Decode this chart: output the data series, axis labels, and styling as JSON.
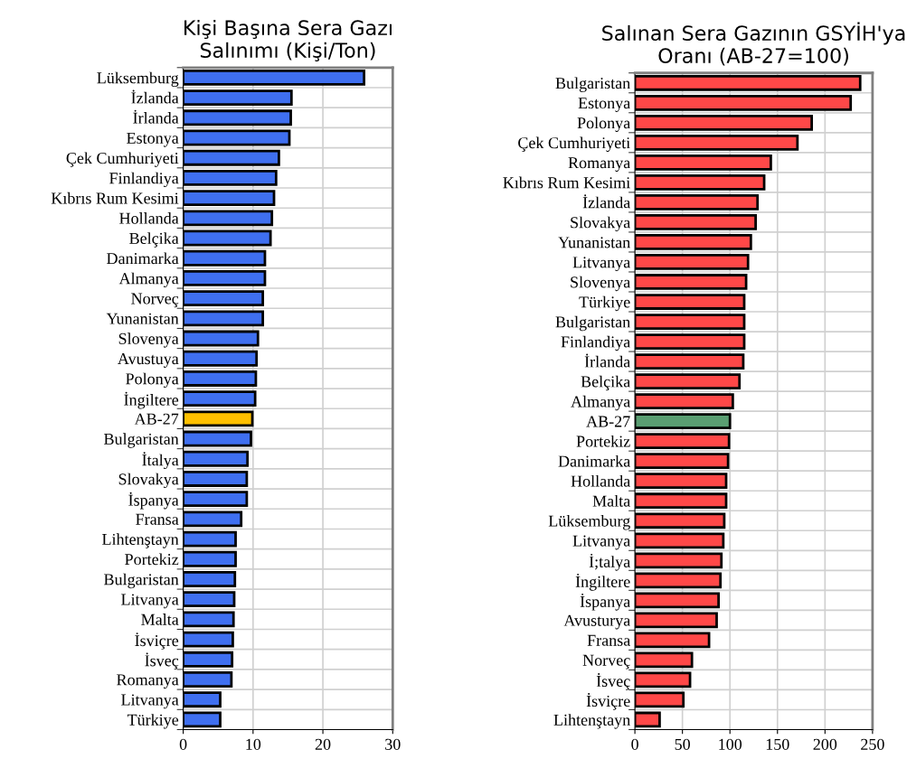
{
  "chart_data": [
    {
      "type": "bar",
      "orientation": "horizontal",
      "title": "Kişi Başına Sera Gazı\nSalınımı (Kişi/Ton)",
      "categories": [
        "Lüksemburg",
        "İzlanda",
        "İrlanda",
        "Estonya",
        "Çek Cumhuriyeti",
        "Finlandiya",
        "Kıbrıs Rum Kesimi",
        "Hollanda",
        "Belçika",
        "Danimarka",
        "Almanya",
        "Norveç",
        "Yunanistan",
        "Slovenya",
        "Avustuya",
        "Polonya",
        "İngiltere",
        "AB-27",
        "Bulgaristan",
        "İtalya",
        "Slovakya",
        "İspanya",
        "Fransa",
        "Lihtenştayn",
        "Portekiz",
        "Bulgaristan",
        "Litvanya",
        "Malta",
        "İsviçre",
        "İsveç",
        "Romanya",
        "Litvanya",
        "Türkiye"
      ],
      "values": [
        25.9,
        15.5,
        15.4,
        15.2,
        13.7,
        13.3,
        13.0,
        12.7,
        12.5,
        11.7,
        11.7,
        11.4,
        11.4,
        10.7,
        10.5,
        10.4,
        10.3,
        9.9,
        9.7,
        9.2,
        9.1,
        9.1,
        8.3,
        7.5,
        7.5,
        7.4,
        7.3,
        7.2,
        7.1,
        7.0,
        6.9,
        5.3,
        5.3
      ],
      "colors": [
        "#3f6ff0",
        "#3f6ff0",
        "#3f6ff0",
        "#3f6ff0",
        "#3f6ff0",
        "#3f6ff0",
        "#3f6ff0",
        "#3f6ff0",
        "#3f6ff0",
        "#3f6ff0",
        "#3f6ff0",
        "#3f6ff0",
        "#3f6ff0",
        "#3f6ff0",
        "#3f6ff0",
        "#3f6ff0",
        "#3f6ff0",
        "#ffc000",
        "#3f6ff0",
        "#3f6ff0",
        "#3f6ff0",
        "#3f6ff0",
        "#3f6ff0",
        "#3f6ff0",
        "#3f6ff0",
        "#3f6ff0",
        "#3f6ff0",
        "#3f6ff0",
        "#3f6ff0",
        "#3f6ff0",
        "#3f6ff0",
        "#3f6ff0",
        "#3f6ff0"
      ],
      "xlim": [
        0,
        30
      ],
      "xticks": [
        0,
        10,
        20,
        30
      ],
      "grid": true
    },
    {
      "type": "bar",
      "orientation": "horizontal",
      "title": "Salınan Sera Gazının GSYİH'ya\nOranı (AB-27=100)",
      "categories": [
        "Bulgaristan",
        "Estonya",
        "Polonya",
        "Çek Cumhuriyeti",
        "Romanya",
        "Kıbrıs Rum Kesimi",
        "İzlanda",
        "Slovakya",
        "Yunanistan",
        "Litvanya",
        "Slovenya",
        "Türkiye",
        "Bulgaristan",
        "Finlandiya",
        "İrlanda",
        "Belçika",
        "Almanya",
        "AB-27",
        "Portekiz",
        "Danimarka",
        "Hollanda",
        "Malta",
        "Lüksemburg",
        "Litvanya",
        "İ;talya",
        "İngiltere",
        "İspanya",
        "Avusturya",
        "Fransa",
        "Norveç",
        "İsveç",
        "İsviçre",
        "Lihtenştayn"
      ],
      "values": [
        237,
        227,
        186,
        171,
        143,
        136,
        129,
        127,
        122,
        119,
        117,
        115,
        115,
        115,
        114,
        110,
        103,
        100,
        99,
        98,
        96,
        96,
        94,
        93,
        91,
        90,
        88,
        86,
        78,
        60,
        58,
        51,
        26
      ],
      "colors": [
        "#ff4848",
        "#ff4848",
        "#ff4848",
        "#ff4848",
        "#ff4848",
        "#ff4848",
        "#ff4848",
        "#ff4848",
        "#ff4848",
        "#ff4848",
        "#ff4848",
        "#ff4848",
        "#ff4848",
        "#ff4848",
        "#ff4848",
        "#ff4848",
        "#ff4848",
        "#5a9e72",
        "#ff4848",
        "#ff4848",
        "#ff4848",
        "#ff4848",
        "#ff4848",
        "#ff4848",
        "#ff4848",
        "#ff4848",
        "#ff4848",
        "#ff4848",
        "#ff4848",
        "#ff4848",
        "#ff4848",
        "#ff4848",
        "#ff4848"
      ],
      "xlim": [
        0,
        250
      ],
      "xticks": [
        0,
        50,
        100,
        150,
        200,
        250
      ],
      "grid": true
    }
  ]
}
